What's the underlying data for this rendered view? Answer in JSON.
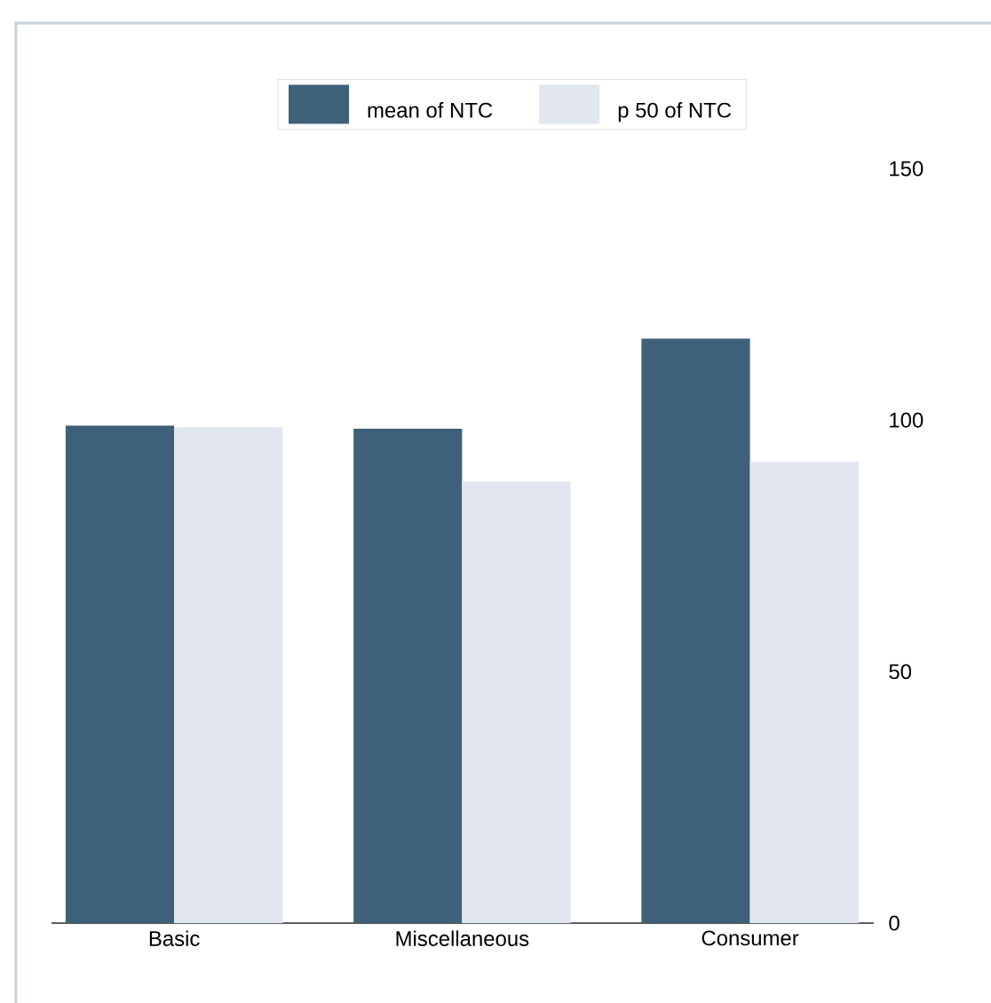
{
  "chart_data": {
    "type": "bar",
    "categories": [
      "Basic",
      "Miscellaneous",
      "Consumer"
    ],
    "series": [
      {
        "name": "mean of NTC",
        "color": "#3e6179",
        "values": [
          98.9,
          98.3,
          116.2
        ]
      },
      {
        "name": "p 50 of NTC",
        "color": "#e1e6f0",
        "values": [
          98.6,
          87.8,
          91.7
        ]
      }
    ],
    "ylim": [
      0,
      150
    ],
    "yticks": [
      0,
      50,
      100,
      150
    ],
    "grid": false,
    "legend": "top"
  }
}
